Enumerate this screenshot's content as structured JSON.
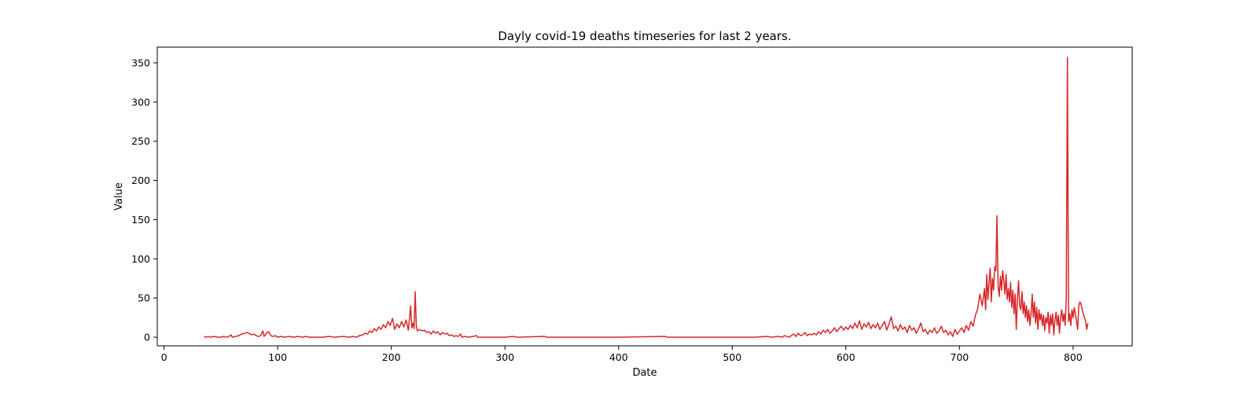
{
  "chart_data": {
    "type": "line",
    "title": "Dayly covid-19 deaths timeseries for last 2 years.",
    "xlabel": "Date",
    "ylabel": "Value",
    "xlim": [
      -6,
      852
    ],
    "ylim": [
      -11,
      370
    ],
    "x_ticks": [
      0,
      100,
      200,
      300,
      400,
      500,
      600,
      700,
      800
    ],
    "y_ticks": [
      0,
      50,
      100,
      150,
      200,
      250,
      300,
      350
    ],
    "grid": false,
    "legend": "none",
    "series": [
      {
        "color": "#d62728",
        "points": [
          [
            35,
            1
          ],
          [
            37,
            0
          ],
          [
            39,
            1
          ],
          [
            41,
            0
          ],
          [
            44,
            1
          ],
          [
            47,
            0
          ],
          [
            50,
            0
          ],
          [
            52,
            1
          ],
          [
            55,
            0
          ],
          [
            57,
            1
          ],
          [
            59,
            3
          ],
          [
            60,
            0
          ],
          [
            63,
            1
          ],
          [
            66,
            2
          ],
          [
            68,
            4
          ],
          [
            71,
            5
          ],
          [
            73,
            6
          ],
          [
            75,
            5
          ],
          [
            77,
            3
          ],
          [
            79,
            4
          ],
          [
            81,
            2
          ],
          [
            83,
            1
          ],
          [
            85,
            2
          ],
          [
            87,
            8
          ],
          [
            88,
            1
          ],
          [
            90,
            5
          ],
          [
            92,
            7
          ],
          [
            94,
            2
          ],
          [
            96,
            1
          ],
          [
            98,
            2
          ],
          [
            100,
            0
          ],
          [
            103,
            1
          ],
          [
            106,
            0
          ],
          [
            110,
            1
          ],
          [
            114,
            0
          ],
          [
            118,
            1
          ],
          [
            122,
            0
          ],
          [
            125,
            1
          ],
          [
            128,
            0
          ],
          [
            135,
            0
          ],
          [
            140,
            0
          ],
          [
            145,
            1
          ],
          [
            150,
            0
          ],
          [
            158,
            1
          ],
          [
            163,
            0
          ],
          [
            166,
            1
          ],
          [
            169,
            0
          ],
          [
            172,
            2
          ],
          [
            175,
            3
          ],
          [
            177,
            5
          ],
          [
            179,
            4
          ],
          [
            181,
            8
          ],
          [
            183,
            6
          ],
          [
            185,
            11
          ],
          [
            187,
            8
          ],
          [
            189,
            13
          ],
          [
            191,
            10
          ],
          [
            193,
            16
          ],
          [
            195,
            12
          ],
          [
            197,
            20
          ],
          [
            199,
            15
          ],
          [
            201,
            24
          ],
          [
            203,
            10
          ],
          [
            205,
            17
          ],
          [
            207,
            12
          ],
          [
            209,
            20
          ],
          [
            211,
            13
          ],
          [
            213,
            22
          ],
          [
            215,
            9
          ],
          [
            217,
            40
          ],
          [
            218,
            12
          ],
          [
            219,
            18
          ],
          [
            220,
            11
          ],
          [
            221,
            58
          ],
          [
            222,
            14
          ],
          [
            223,
            8
          ],
          [
            225,
            10
          ],
          [
            227,
            8
          ],
          [
            229,
            9
          ],
          [
            231,
            6
          ],
          [
            233,
            7
          ],
          [
            235,
            4
          ],
          [
            237,
            8
          ],
          [
            239,
            5
          ],
          [
            241,
            7
          ],
          [
            243,
            3
          ],
          [
            245,
            6
          ],
          [
            247,
            4
          ],
          [
            249,
            5
          ],
          [
            251,
            2
          ],
          [
            253,
            3
          ],
          [
            255,
            1
          ],
          [
            257,
            2
          ],
          [
            259,
            1
          ],
          [
            261,
            4
          ],
          [
            262,
            0
          ],
          [
            265,
            1
          ],
          [
            268,
            0
          ],
          [
            272,
            1
          ],
          [
            275,
            2
          ],
          [
            276,
            0
          ],
          [
            285,
            0
          ],
          [
            300,
            0
          ],
          [
            308,
            1
          ],
          [
            310,
            0
          ],
          [
            335,
            1
          ],
          [
            337,
            0
          ],
          [
            360,
            0
          ],
          [
            400,
            0
          ],
          [
            441,
            1
          ],
          [
            443,
            0
          ],
          [
            480,
            0
          ],
          [
            520,
            0
          ],
          [
            530,
            1
          ],
          [
            535,
            0
          ],
          [
            540,
            1
          ],
          [
            544,
            0
          ],
          [
            546,
            2
          ],
          [
            548,
            1
          ],
          [
            550,
            0
          ],
          [
            552,
            2
          ],
          [
            554,
            4
          ],
          [
            556,
            1
          ],
          [
            558,
            5
          ],
          [
            560,
            2
          ],
          [
            562,
            3
          ],
          [
            564,
            6
          ],
          [
            566,
            2
          ],
          [
            568,
            4
          ],
          [
            570,
            3
          ],
          [
            572,
            5
          ],
          [
            574,
            3
          ],
          [
            576,
            7
          ],
          [
            578,
            4
          ],
          [
            580,
            9
          ],
          [
            582,
            6
          ],
          [
            584,
            10
          ],
          [
            586,
            5
          ],
          [
            588,
            8
          ],
          [
            590,
            12
          ],
          [
            592,
            7
          ],
          [
            594,
            11
          ],
          [
            596,
            14
          ],
          [
            598,
            9
          ],
          [
            600,
            13
          ],
          [
            602,
            10
          ],
          [
            604,
            15
          ],
          [
            606,
            11
          ],
          [
            608,
            18
          ],
          [
            610,
            12
          ],
          [
            612,
            21
          ],
          [
            614,
            10
          ],
          [
            616,
            17
          ],
          [
            618,
            13
          ],
          [
            620,
            19
          ],
          [
            622,
            11
          ],
          [
            624,
            16
          ],
          [
            626,
            12
          ],
          [
            628,
            18
          ],
          [
            630,
            10
          ],
          [
            632,
            15
          ],
          [
            634,
            20
          ],
          [
            636,
            9
          ],
          [
            638,
            17
          ],
          [
            640,
            26
          ],
          [
            642,
            11
          ],
          [
            644,
            14
          ],
          [
            646,
            8
          ],
          [
            648,
            16
          ],
          [
            650,
            10
          ],
          [
            652,
            13
          ],
          [
            654,
            6
          ],
          [
            656,
            15
          ],
          [
            658,
            9
          ],
          [
            660,
            12
          ],
          [
            662,
            5
          ],
          [
            664,
            11
          ],
          [
            666,
            18
          ],
          [
            668,
            7
          ],
          [
            670,
            10
          ],
          [
            672,
            4
          ],
          [
            674,
            9
          ],
          [
            676,
            6
          ],
          [
            678,
            12
          ],
          [
            680,
            5
          ],
          [
            682,
            8
          ],
          [
            684,
            14
          ],
          [
            686,
            6
          ],
          [
            688,
            9
          ],
          [
            690,
            3
          ],
          [
            692,
            7
          ],
          [
            694,
            1
          ],
          [
            696,
            10
          ],
          [
            698,
            4
          ],
          [
            700,
            8
          ],
          [
            702,
            12
          ],
          [
            704,
            6
          ],
          [
            706,
            15
          ],
          [
            708,
            9
          ],
          [
            710,
            20
          ],
          [
            712,
            14
          ],
          [
            714,
            28
          ],
          [
            716,
            36
          ],
          [
            718,
            55
          ],
          [
            720,
            40
          ],
          [
            722,
            62
          ],
          [
            723,
            35
          ],
          [
            724,
            80
          ],
          [
            725,
            48
          ],
          [
            726,
            70
          ],
          [
            727,
            88
          ],
          [
            728,
            45
          ],
          [
            729,
            75
          ],
          [
            730,
            60
          ],
          [
            731,
            90
          ],
          [
            732,
            85
          ],
          [
            733,
            155
          ],
          [
            734,
            65
          ],
          [
            735,
            52
          ],
          [
            736,
            78
          ],
          [
            737,
            60
          ],
          [
            738,
            85
          ],
          [
            739,
            72
          ],
          [
            740,
            55
          ],
          [
            741,
            80
          ],
          [
            742,
            48
          ],
          [
            743,
            62
          ],
          [
            744,
            45
          ],
          [
            745,
            70
          ],
          [
            746,
            38
          ],
          [
            747,
            60
          ],
          [
            748,
            30
          ],
          [
            749,
            55
          ],
          [
            750,
            10
          ],
          [
            751,
            50
          ],
          [
            752,
            72
          ],
          [
            753,
            40
          ],
          [
            754,
            35
          ],
          [
            755,
            58
          ],
          [
            756,
            30
          ],
          [
            757,
            45
          ],
          [
            758,
            25
          ],
          [
            759,
            40
          ],
          [
            760,
            20
          ],
          [
            761,
            35
          ],
          [
            762,
            15
          ],
          [
            763,
            30
          ],
          [
            764,
            55
          ],
          [
            765,
            25
          ],
          [
            766,
            45
          ],
          [
            767,
            18
          ],
          [
            768,
            38
          ],
          [
            769,
            10
          ],
          [
            770,
            35
          ],
          [
            771,
            22
          ],
          [
            772,
            30
          ],
          [
            773,
            15
          ],
          [
            774,
            28
          ],
          [
            775,
            8
          ],
          [
            776,
            25
          ],
          [
            777,
            18
          ],
          [
            778,
            32
          ],
          [
            779,
            5
          ],
          [
            780,
            28
          ],
          [
            781,
            15
          ],
          [
            782,
            30
          ],
          [
            783,
            3
          ],
          [
            784,
            22
          ],
          [
            785,
            32
          ],
          [
            786,
            15
          ],
          [
            787,
            28
          ],
          [
            788,
            5
          ],
          [
            789,
            25
          ],
          [
            790,
            35
          ],
          [
            791,
            20
          ],
          [
            792,
            30
          ],
          [
            793,
            15
          ],
          [
            794,
            50
          ],
          [
            795,
            357
          ],
          [
            796,
            20
          ],
          [
            797,
            30
          ],
          [
            798,
            15
          ],
          [
            799,
            35
          ],
          [
            800,
            25
          ],
          [
            801,
            38
          ],
          [
            802,
            30
          ],
          [
            803,
            20
          ],
          [
            804,
            10
          ],
          [
            805,
            40
          ],
          [
            806,
            45
          ],
          [
            807,
            42
          ],
          [
            808,
            35
          ],
          [
            809,
            30
          ],
          [
            810,
            25
          ],
          [
            811,
            20
          ],
          [
            812,
            10
          ],
          [
            813,
            18
          ]
        ]
      }
    ]
  }
}
